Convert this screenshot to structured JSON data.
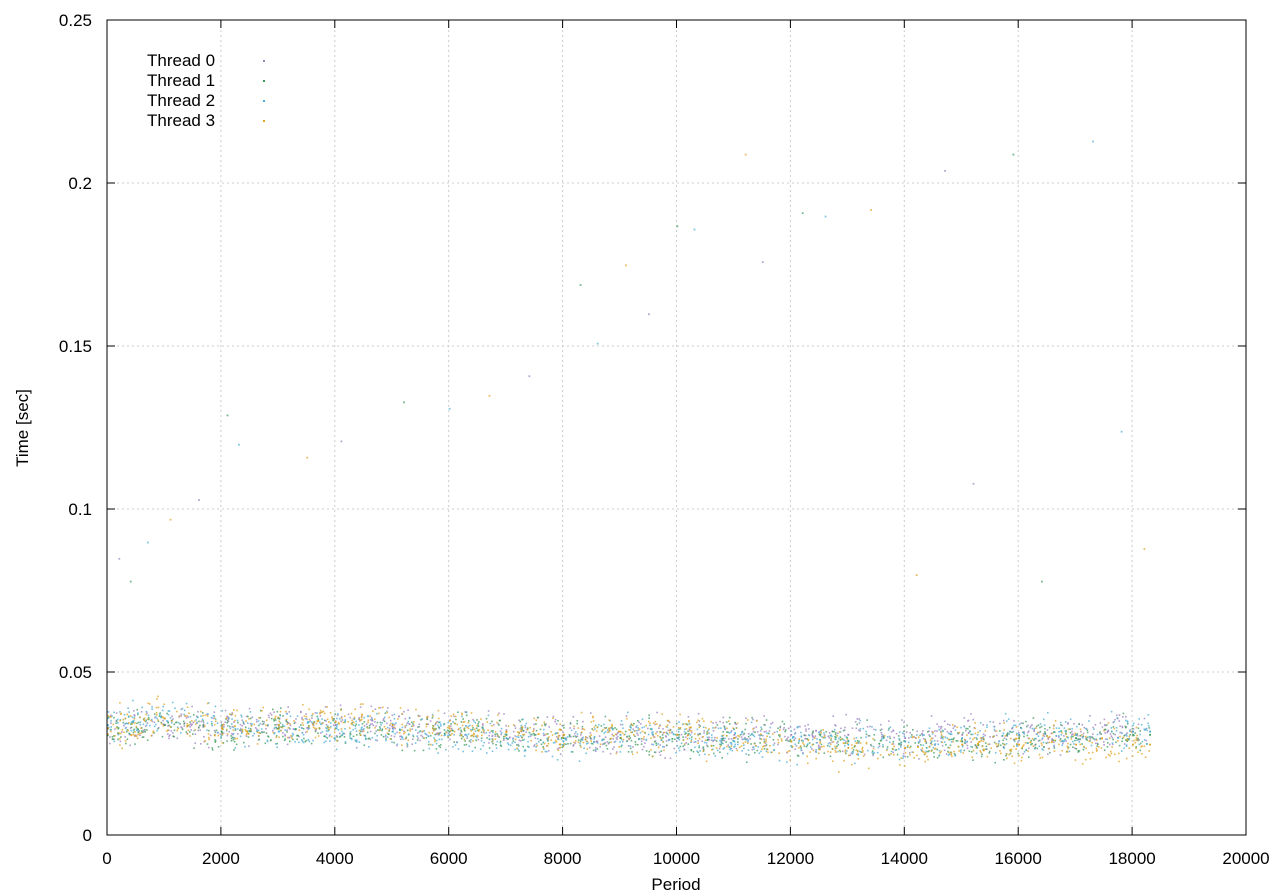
{
  "chart_data": {
    "type": "scatter",
    "xlabel": "Period",
    "ylabel": "Time [sec]",
    "xlim": [
      0,
      20000
    ],
    "ylim": [
      0,
      0.25
    ],
    "x_ticks": [
      0,
      2000,
      4000,
      6000,
      8000,
      10000,
      12000,
      14000,
      16000,
      18000,
      20000
    ],
    "x_tick_labels": [
      "0",
      "2000",
      "4000",
      "6000",
      "8000",
      "10000",
      "12000",
      "14000",
      "16000",
      "18000",
      "20000"
    ],
    "y_ticks": [
      0,
      0.05,
      0.1,
      0.15,
      0.2,
      0.25
    ],
    "y_tick_labels": [
      "0",
      "0.05",
      "0.1",
      "0.15",
      "0.2",
      "0.25"
    ],
    "grid": true,
    "legend_position": "top-left",
    "x_max_data": 18300,
    "series": [
      {
        "name": "Thread 0",
        "color": "#9b7fc0",
        "points": [
          [
            0,
            0.033
          ],
          [
            1000,
            0.034
          ],
          [
            2000,
            0.033
          ],
          [
            3000,
            0.034
          ],
          [
            4000,
            0.034
          ],
          [
            5000,
            0.033
          ],
          [
            6000,
            0.033
          ],
          [
            7000,
            0.032
          ],
          [
            8000,
            0.031
          ],
          [
            9000,
            0.03
          ],
          [
            10000,
            0.031
          ],
          [
            11000,
            0.031
          ],
          [
            12000,
            0.031
          ],
          [
            13000,
            0.031
          ],
          [
            14000,
            0.03
          ],
          [
            15000,
            0.031
          ],
          [
            16000,
            0.031
          ],
          [
            17000,
            0.031
          ],
          [
            18000,
            0.032
          ],
          [
            18300,
            0.032
          ]
        ]
      },
      {
        "name": "Thread 1",
        "color": "#3a9a5c",
        "points": [
          [
            0,
            0.033
          ],
          [
            1000,
            0.034
          ],
          [
            2000,
            0.032
          ],
          [
            3000,
            0.033
          ],
          [
            4000,
            0.033
          ],
          [
            5000,
            0.032
          ],
          [
            6000,
            0.032
          ],
          [
            7000,
            0.031
          ],
          [
            8000,
            0.03
          ],
          [
            9000,
            0.03
          ],
          [
            10000,
            0.03
          ],
          [
            11000,
            0.03
          ],
          [
            12000,
            0.029
          ],
          [
            13000,
            0.029
          ],
          [
            14000,
            0.029
          ],
          [
            15000,
            0.029
          ],
          [
            16000,
            0.03
          ],
          [
            17000,
            0.03
          ],
          [
            18000,
            0.031
          ],
          [
            18300,
            0.031
          ]
        ]
      },
      {
        "name": "Thread 2",
        "color": "#4aaed6",
        "points": [
          [
            0,
            0.034
          ],
          [
            1000,
            0.036
          ],
          [
            2000,
            0.034
          ],
          [
            3000,
            0.032
          ],
          [
            4000,
            0.033
          ],
          [
            5000,
            0.032
          ],
          [
            6000,
            0.031
          ],
          [
            7000,
            0.03
          ],
          [
            8000,
            0.029
          ],
          [
            9000,
            0.031
          ],
          [
            10000,
            0.03
          ],
          [
            11000,
            0.029
          ],
          [
            12000,
            0.029
          ],
          [
            13000,
            0.028
          ],
          [
            14000,
            0.029
          ],
          [
            15000,
            0.03
          ],
          [
            16000,
            0.031
          ],
          [
            17000,
            0.031
          ],
          [
            18000,
            0.032
          ],
          [
            18300,
            0.032
          ]
        ]
      },
      {
        "name": "Thread 3",
        "color": "#e0a21a",
        "points": [
          [
            0,
            0.033
          ],
          [
            1000,
            0.036
          ],
          [
            2000,
            0.033
          ],
          [
            3000,
            0.034
          ],
          [
            4000,
            0.035
          ],
          [
            5000,
            0.034
          ],
          [
            6000,
            0.033
          ],
          [
            7000,
            0.032
          ],
          [
            8000,
            0.031
          ],
          [
            9000,
            0.032
          ],
          [
            10000,
            0.031
          ],
          [
            11000,
            0.03
          ],
          [
            12000,
            0.029
          ],
          [
            13000,
            0.027
          ],
          [
            14000,
            0.027
          ],
          [
            15000,
            0.028
          ],
          [
            16000,
            0.028
          ],
          [
            17000,
            0.028
          ],
          [
            18000,
            0.028
          ],
          [
            18300,
            0.028
          ]
        ]
      }
    ],
    "outliers": [
      [
        200,
        0.085
      ],
      [
        400,
        0.078
      ],
      [
        700,
        0.09
      ],
      [
        1100,
        0.097
      ],
      [
        1600,
        0.103
      ],
      [
        2100,
        0.129
      ],
      [
        2300,
        0.12
      ],
      [
        3500,
        0.116
      ],
      [
        4100,
        0.121
      ],
      [
        5200,
        0.133
      ],
      [
        6000,
        0.131
      ],
      [
        6700,
        0.135
      ],
      [
        7400,
        0.141
      ],
      [
        8300,
        0.169
      ],
      [
        8600,
        0.151
      ],
      [
        9100,
        0.175
      ],
      [
        9500,
        0.16
      ],
      [
        10000,
        0.187
      ],
      [
        10300,
        0.186
      ],
      [
        11200,
        0.209
      ],
      [
        11500,
        0.176
      ],
      [
        12200,
        0.191
      ],
      [
        12600,
        0.19
      ],
      [
        13400,
        0.192
      ],
      [
        14700,
        0.204
      ],
      [
        15900,
        0.209
      ],
      [
        17300,
        0.213
      ],
      [
        14200,
        0.08
      ],
      [
        15200,
        0.108
      ],
      [
        16400,
        0.078
      ],
      [
        17800,
        0.124
      ],
      [
        18200,
        0.088
      ]
    ]
  }
}
